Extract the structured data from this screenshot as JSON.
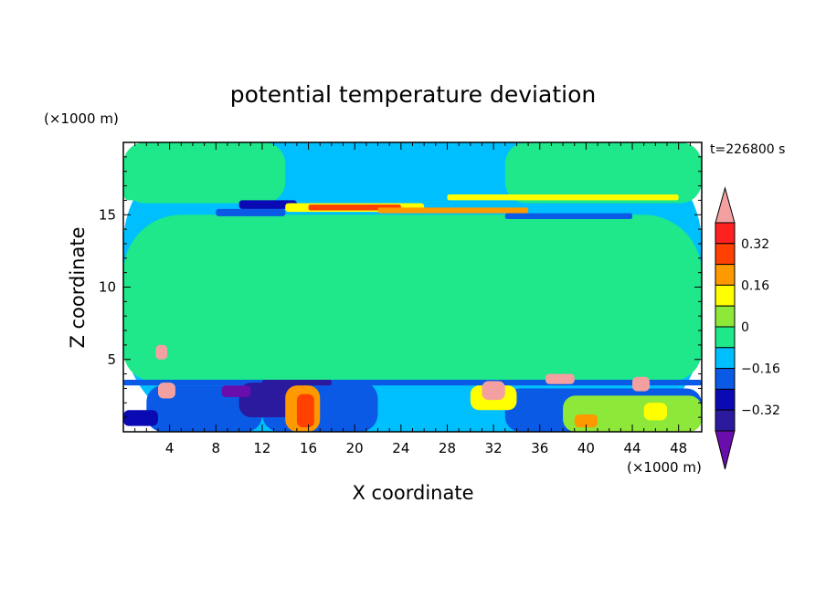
{
  "chart_data": {
    "type": "heatmap",
    "title": "potential temperature deviation",
    "xlabel": "X coordinate",
    "ylabel": "Z coordinate",
    "x_unit_label": "(×1000 m)",
    "y_unit_label": "(×1000 m)",
    "time_label": "t=226800 s",
    "xlim": [
      0,
      50
    ],
    "ylim": [
      0,
      20
    ],
    "x_ticks": [
      4,
      8,
      12,
      16,
      20,
      24,
      28,
      32,
      36,
      40,
      44,
      48
    ],
    "y_ticks": [
      5,
      10,
      15
    ],
    "x_minor_step": 1,
    "y_minor_step": 1,
    "colorbar": {
      "levels": [
        -0.4,
        -0.32,
        -0.24,
        -0.16,
        -0.08,
        0,
        0.08,
        0.16,
        0.24,
        0.32,
        0.4
      ],
      "labels": [
        "0.32",
        "0.16",
        "0",
        "−0.16",
        "−0.32"
      ],
      "label_values": [
        0.32,
        0.16,
        0,
        -0.16,
        -0.32
      ],
      "colors": [
        "#6a0dad",
        "#2b1a9e",
        "#0a0ab4",
        "#0a5ae6",
        "#00bfff",
        "#1ee88a",
        "#8ee83a",
        "#ffff00",
        "#ff9900",
        "#ff4000",
        "#ff2020",
        "#f4a0a0"
      ]
    },
    "regions": [
      {
        "x": [
          0,
          50
        ],
        "z": [
          0,
          20
        ],
        "level": 4
      },
      {
        "x": [
          0,
          50
        ],
        "z": [
          3.5,
          15
        ],
        "level": 5
      },
      {
        "x": [
          0,
          14
        ],
        "z": [
          15.8,
          20
        ],
        "level": 5
      },
      {
        "x": [
          33,
          50
        ],
        "z": [
          15.8,
          20
        ],
        "level": 5
      },
      {
        "x": [
          0,
          50
        ],
        "z": [
          3.5,
          9.5
        ],
        "level": 5
      },
      {
        "x": [
          0,
          1.5
        ],
        "z": [
          16,
          17.5
        ],
        "level": 5
      },
      {
        "x": [
          19,
          25
        ],
        "z": [
          9,
          14.5
        ],
        "level": 5
      },
      {
        "x": [
          37,
          41
        ],
        "z": [
          11,
          14
        ],
        "level": 5
      },
      {
        "x": [
          12,
          22
        ],
        "z": [
          0,
          3.5
        ],
        "level": 3
      },
      {
        "x": [
          0,
          50
        ],
        "z": [
          3.2,
          3.6
        ],
        "level": 3
      },
      {
        "x": [
          2,
          12
        ],
        "z": [
          0,
          3.2
        ],
        "level": 3
      },
      {
        "x": [
          33,
          50
        ],
        "z": [
          0,
          3.0
        ],
        "level": 3
      },
      {
        "x": [
          10,
          16
        ],
        "z": [
          1.0,
          3.4
        ],
        "level": 1
      },
      {
        "x": [
          8.5,
          11
        ],
        "z": [
          2.4,
          3.2
        ],
        "level": 0
      },
      {
        "x": [
          12,
          18
        ],
        "z": [
          3.2,
          3.6
        ],
        "level": 1
      },
      {
        "x": [
          14,
          17
        ],
        "z": [
          0,
          3.2
        ],
        "level": 8
      },
      {
        "x": [
          15,
          16.5
        ],
        "z": [
          0.3,
          2.6
        ],
        "level": 9
      },
      {
        "x": [
          38,
          50
        ],
        "z": [
          0,
          2.5
        ],
        "level": 6
      },
      {
        "x": [
          39,
          41
        ],
        "z": [
          0.3,
          1.2
        ],
        "level": 8
      },
      {
        "x": [
          45,
          47
        ],
        "z": [
          0.8,
          2.0
        ],
        "level": 7
      },
      {
        "x": [
          30,
          34
        ],
        "z": [
          1.5,
          3.2
        ],
        "level": 7
      },
      {
        "x": [
          31,
          33
        ],
        "z": [
          2.2,
          3.5
        ],
        "level": 11
      },
      {
        "x": [
          36.5,
          39
        ],
        "z": [
          3.3,
          4.0
        ],
        "level": 11
      },
      {
        "x": [
          44,
          45.5
        ],
        "z": [
          2.8,
          3.8
        ],
        "level": 11
      },
      {
        "x": [
          3,
          4.5
        ],
        "z": [
          2.3,
          3.4
        ],
        "level": 11
      },
      {
        "x": [
          2.8,
          3.8
        ],
        "z": [
          5.0,
          6.0
        ],
        "level": 11
      },
      {
        "x": [
          0,
          3
        ],
        "z": [
          0.4,
          1.5
        ],
        "level": 2
      },
      {
        "x": [
          8,
          14
        ],
        "z": [
          14.9,
          15.4
        ],
        "level": 3
      },
      {
        "x": [
          10,
          15
        ],
        "z": [
          15.4,
          16.0
        ],
        "level": 2
      },
      {
        "x": [
          14,
          26
        ],
        "z": [
          15.2,
          15.8
        ],
        "level": 7
      },
      {
        "x": [
          16,
          24
        ],
        "z": [
          15.3,
          15.7
        ],
        "level": 9
      },
      {
        "x": [
          22,
          35
        ],
        "z": [
          15.1,
          15.5
        ],
        "level": 8
      },
      {
        "x": [
          28,
          48
        ],
        "z": [
          16,
          16.4
        ],
        "level": 7
      },
      {
        "x": [
          33,
          44
        ],
        "z": [
          14.7,
          15.1
        ],
        "level": 3
      }
    ]
  }
}
